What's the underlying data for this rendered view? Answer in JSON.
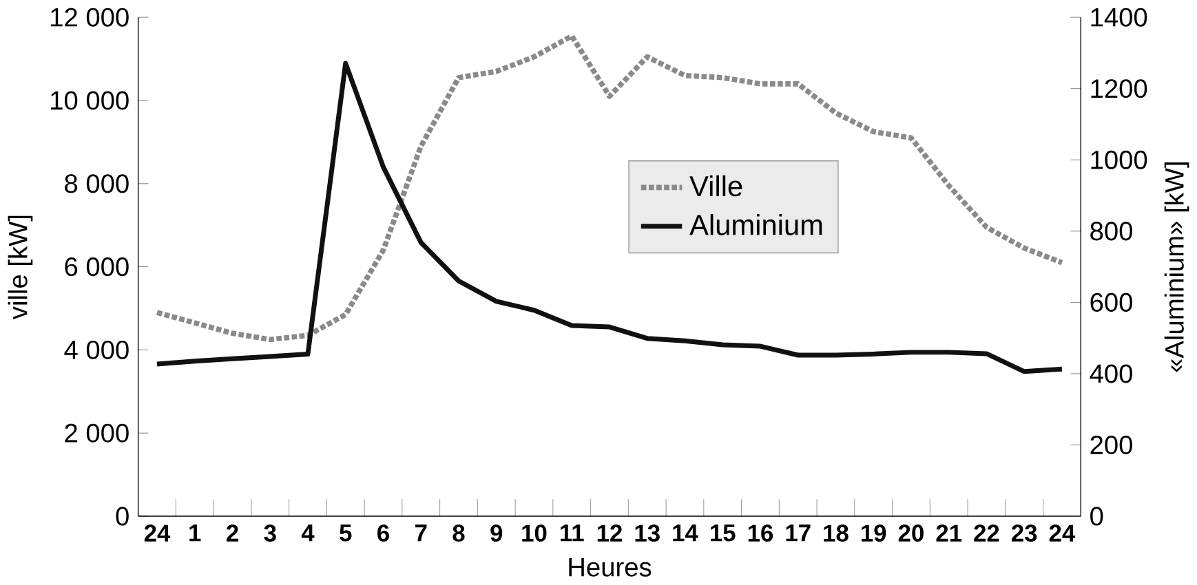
{
  "chart_data": {
    "type": "line",
    "xlabel": "Heures",
    "ylabel": "ville [kW]",
    "y2label": "«Aluminium» [kW]",
    "categories": [
      "24",
      "1",
      "2",
      "3",
      "4",
      "5",
      "6",
      "7",
      "8",
      "9",
      "10",
      "11",
      "12",
      "13",
      "14",
      "15",
      "16",
      "17",
      "18",
      "19",
      "20",
      "21",
      "22",
      "23",
      "24"
    ],
    "ylim": [
      0,
      12000
    ],
    "yticks": [
      0,
      {
        "value": 2000,
        "label": "2 000"
      },
      {
        "value": 4000,
        "label": "4 000"
      },
      {
        "value": 6000,
        "label": "6 000"
      },
      {
        "value": 8000,
        "label": "8 000"
      },
      {
        "value": 10000,
        "label": "10 000"
      },
      {
        "value": 12000,
        "label": "12 000"
      }
    ],
    "y2lim": [
      0,
      1400
    ],
    "y2ticks": [
      0,
      200,
      400,
      600,
      800,
      1000,
      1200,
      1400
    ],
    "legend": "center",
    "grid": false,
    "marker": "none",
    "series": [
      {
        "name": "Ville",
        "color": "#8a8a8a",
        "line_style": "dotted",
        "values": [
          4900,
          4650,
          4400,
          4250,
          4350,
          4850,
          6400,
          8900,
          10550,
          10700,
          11050,
          11550,
          10100,
          11050,
          10600,
          10550,
          10400,
          10400,
          9700,
          9250,
          9100,
          7950,
          6950,
          6450,
          6100
        ]
      },
      {
        "name": "Aluminium",
        "color": "#111111",
        "line_style": "solid",
        "axis": "y2",
        "values": [
          427,
          435,
          442,
          448,
          455,
          1271,
          980,
          768,
          660,
          603,
          578,
          535,
          531,
          499,
          492,
          481,
          477,
          452,
          452,
          455,
          460,
          460,
          456,
          406,
          413
        ]
      }
    ]
  }
}
